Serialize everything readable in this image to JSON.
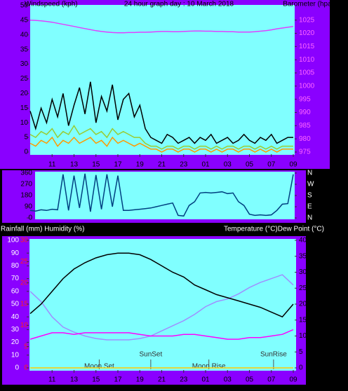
{
  "chart_data": [
    {
      "type": "line",
      "title": "24 hour graph day : 10 March 2018",
      "ylabel": "Windspeed (kph)",
      "y2label": "Barometer (hpa)",
      "x": [
        0,
        0.5,
        1,
        1.5,
        2,
        2.5,
        3,
        3.5,
        4,
        4.5,
        5,
        5.5,
        6,
        6.5,
        7,
        7.5,
        8,
        8.5,
        9,
        9.5,
        10,
        10.5,
        11,
        11.5,
        12,
        12.5,
        13,
        13.5,
        14,
        14.5,
        15,
        15.5,
        16,
        16.5,
        17,
        17.5,
        18,
        18.5,
        19,
        19.5,
        20,
        20.5,
        21,
        21.5,
        22,
        22.5,
        23,
        23.5,
        24
      ],
      "xlim": [
        0,
        24
      ],
      "xticks": [
        {
          "value": 2,
          "label": "11"
        },
        {
          "value": 4,
          "label": "13"
        },
        {
          "value": 6,
          "label": "15"
        },
        {
          "value": 8,
          "label": "17"
        },
        {
          "value": 10,
          "label": "19"
        },
        {
          "value": 12,
          "label": "21"
        },
        {
          "value": 14,
          "label": "23"
        },
        {
          "value": 16,
          "label": "01"
        },
        {
          "value": 18,
          "label": "03"
        },
        {
          "value": 20,
          "label": "05"
        },
        {
          "value": 22,
          "label": "07"
        },
        {
          "value": 24,
          "label": "09"
        }
      ],
      "ylim": [
        0,
        50
      ],
      "yticks": [
        0,
        5,
        10,
        15,
        20,
        25,
        30,
        35,
        40,
        45,
        50
      ],
      "y2lim": [
        975,
        1030.5
      ],
      "y2ticks": [
        975,
        980,
        985,
        990,
        995,
        1000,
        1005,
        1010,
        1015,
        1020,
        1025
      ],
      "series": [
        {
          "color": "#000000",
          "values": [
            14,
            8,
            15,
            10,
            18,
            12,
            20,
            9,
            16,
            22,
            13,
            24,
            10,
            19,
            14,
            23,
            11,
            18,
            20,
            12,
            16,
            8,
            5,
            4,
            3,
            6,
            5,
            3,
            4,
            5,
            3,
            5,
            4,
            6,
            3,
            4,
            5,
            3,
            4,
            6,
            4,
            3,
            5,
            4,
            6,
            3,
            4,
            5,
            5
          ]
        },
        {
          "color": "#99cc33",
          "values": [
            6,
            5,
            7,
            6,
            8,
            5,
            7,
            6,
            9,
            6,
            7,
            8,
            6,
            7,
            5,
            8,
            6,
            7,
            6,
            5,
            5,
            3,
            2,
            2,
            1,
            2,
            2,
            1,
            2,
            2,
            1,
            2,
            2,
            1,
            2,
            1,
            2,
            2,
            1,
            2,
            2,
            1,
            2,
            1,
            2,
            1,
            2,
            2,
            2
          ]
        },
        {
          "color": "#ff9900",
          "values": [
            3,
            2,
            4,
            3,
            5,
            2,
            4,
            3,
            5,
            3,
            4,
            5,
            3,
            4,
            2,
            5,
            3,
            4,
            3,
            2,
            3,
            2,
            1,
            1,
            0,
            1,
            1,
            0,
            1,
            1,
            0,
            1,
            1,
            0,
            1,
            0,
            1,
            1,
            0,
            1,
            1,
            0,
            1,
            0,
            1,
            0,
            1,
            1,
            1
          ]
        },
        {
          "color": "#e040ff",
          "axis": "y2",
          "values": [
            1025,
            1024.9,
            1024.7,
            1024.5,
            1024.2,
            1023.8,
            1023.4,
            1023,
            1022.6,
            1022.2,
            1021.8,
            1021.4,
            1021,
            1020.7,
            1020.5,
            1020.3,
            1020.2,
            1020.2,
            1020.3,
            1020.3,
            1020.4,
            1020.4,
            1020.5,
            1020.6,
            1020.7,
            1020.7,
            1020.6,
            1020.6,
            1020.7,
            1020.8,
            1020.9,
            1020.9,
            1020.8,
            1020.8,
            1020.7,
            1020.7,
            1020.6,
            1020.6,
            1020.5,
            1020.5,
            1020.5,
            1020.6,
            1020.8,
            1021,
            1021.3,
            1021.7,
            1022,
            1022.3,
            1022.6
          ]
        }
      ]
    },
    {
      "type": "line",
      "x": [
        0,
        0.5,
        1,
        1.5,
        2,
        2.5,
        3,
        3.5,
        4,
        4.5,
        5,
        5.5,
        6,
        6.5,
        7,
        7.5,
        8,
        8.5,
        9,
        9.5,
        10,
        10.5,
        11,
        11.5,
        12,
        12.5,
        13,
        13.5,
        14,
        14.5,
        15,
        15.5,
        16,
        16.5,
        17,
        17.5,
        18,
        18.5,
        19,
        19.5,
        20,
        20.5,
        21,
        21.5,
        22,
        22.5,
        23,
        23.5,
        24
      ],
      "xlim": [
        0,
        24
      ],
      "ylim": [
        0,
        360
      ],
      "yticks": [
        0,
        90,
        180,
        270,
        360
      ],
      "y2lim": [
        0,
        360
      ],
      "y2ticks": [
        {
          "value": 0,
          "label": "N"
        },
        {
          "value": 90,
          "label": "E"
        },
        {
          "value": 180,
          "label": "S"
        },
        {
          "value": 270,
          "label": "W"
        },
        {
          "value": 360,
          "label": "N"
        }
      ],
      "series": [
        {
          "color": "#004080",
          "values": [
            60,
            55,
            65,
            60,
            70,
            65,
            350,
            60,
            340,
            80,
            355,
            50,
            345,
            70,
            350,
            90,
            340,
            60,
            60,
            65,
            70,
            75,
            80,
            90,
            100,
            110,
            120,
            20,
            15,
            100,
            130,
            200,
            205,
            200,
            205,
            210,
            195,
            200,
            130,
            100,
            30,
            20,
            25,
            20,
            25,
            60,
            110,
            115,
            350
          ]
        }
      ]
    },
    {
      "type": "line",
      "ylabel": "Rainfall (mm)  Humidity (%)",
      "y2label": "Temperature (°C)Dew Point (°C)",
      "x": [
        0,
        1,
        2,
        3,
        4,
        5,
        6,
        7,
        8,
        9,
        10,
        11,
        12,
        13,
        14,
        15,
        16,
        17,
        18,
        19,
        20,
        21,
        22,
        23,
        24
      ],
      "xlim": [
        0,
        24
      ],
      "xticks": [
        {
          "value": 2,
          "label": "11"
        },
        {
          "value": 4,
          "label": "13"
        },
        {
          "value": 6,
          "label": "15"
        },
        {
          "value": 8,
          "label": "17"
        },
        {
          "value": 10,
          "label": "19"
        },
        {
          "value": 12,
          "label": "21"
        },
        {
          "value": 14,
          "label": "23"
        },
        {
          "value": 16,
          "label": "01"
        },
        {
          "value": 18,
          "label": "03"
        },
        {
          "value": 20,
          "label": "05"
        },
        {
          "value": 22,
          "label": "07"
        },
        {
          "value": 24,
          "label": "09"
        }
      ],
      "ylim": [
        0,
        100
      ],
      "yticks": [
        0,
        10,
        20,
        30,
        40,
        50,
        60,
        70,
        80,
        90,
        100
      ],
      "y3lim": [
        0,
        30
      ],
      "y3ticks": [
        0,
        5,
        10,
        15,
        20,
        25,
        30
      ],
      "y2lim": [
        0,
        40
      ],
      "y2ticks": [
        0,
        5,
        10,
        15,
        20,
        25,
        30,
        35,
        40
      ],
      "series": [
        {
          "color": "#ffcc00",
          "axis": "y3",
          "values": [
            0,
            0,
            0,
            0,
            0,
            0,
            0,
            0,
            0,
            0,
            0,
            0,
            0,
            0,
            0,
            0,
            0,
            0,
            0,
            0,
            0,
            0,
            0,
            0,
            0
          ]
        },
        {
          "color": "#9f8fff",
          "values": [
            60,
            52,
            40,
            32,
            28,
            25,
            23,
            22,
            22,
            22,
            23,
            25,
            29,
            33,
            37,
            42,
            48,
            52,
            54,
            58,
            63,
            67,
            70,
            73,
            65
          ]
        },
        {
          "color": "#ff00ff",
          "axis": "y2",
          "values": [
            9,
            10,
            11,
            11,
            10.5,
            11,
            11,
            11,
            11,
            11,
            10.5,
            10,
            10,
            10,
            10.5,
            10.5,
            10,
            9.5,
            9,
            9,
            9.5,
            9.5,
            10,
            10.5,
            12
          ]
        },
        {
          "color": "#000000",
          "axis": "y2",
          "values": [
            17,
            20,
            24,
            28,
            31,
            33,
            34.5,
            35.5,
            36,
            36,
            35.5,
            34,
            32,
            30,
            28.5,
            26,
            24.5,
            23,
            22,
            21,
            20,
            19,
            17.5,
            16,
            20
          ]
        }
      ],
      "annotations": [
        {
          "text": "Moon Set",
          "x": 6.3
        },
        {
          "text": "SunSet",
          "x": 11
        },
        {
          "text": "Moon Rise",
          "x": 16.3
        },
        {
          "text": "SunRise",
          "x": 22.2
        }
      ]
    }
  ]
}
